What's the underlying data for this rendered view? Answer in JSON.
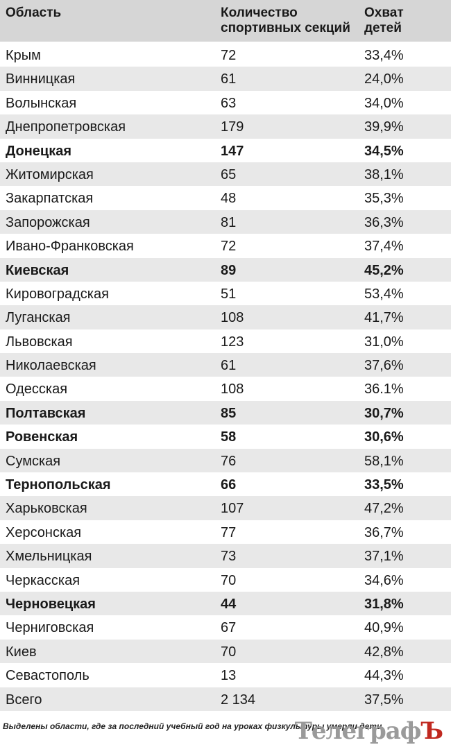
{
  "header": {
    "col1": "Область",
    "col2_line1": "Количество",
    "col2_line2": "спортивных секций",
    "col3_line1": "Охват",
    "col3_line2": "детей"
  },
  "rows": [
    {
      "region": "Крым",
      "sections": "72",
      "coverage": "33,4%",
      "highlighted": false
    },
    {
      "region": "Винницкая",
      "sections": "61",
      "coverage": "24,0%",
      "highlighted": false
    },
    {
      "region": "Волынская",
      "sections": "63",
      "coverage": "34,0%",
      "highlighted": false
    },
    {
      "region": "Днепропетровская",
      "sections": "179",
      "coverage": "39,9%",
      "highlighted": false
    },
    {
      "region": "Донецкая",
      "sections": "147",
      "coverage": "34,5%",
      "highlighted": true
    },
    {
      "region": "Житомирская",
      "sections": "65",
      "coverage": "38,1%",
      "highlighted": false
    },
    {
      "region": "Закарпатская",
      "sections": "48",
      "coverage": "35,3%",
      "highlighted": false
    },
    {
      "region": "Запорожская",
      "sections": "81",
      "coverage": "36,3%",
      "highlighted": false
    },
    {
      "region": "Ивано-Франковская",
      "sections": "72",
      "coverage": "37,4%",
      "highlighted": false
    },
    {
      "region": "Киевская",
      "sections": "89",
      "coverage": "45,2%",
      "highlighted": true
    },
    {
      "region": "Кировоградская",
      "sections": "51",
      "coverage": "53,4%",
      "highlighted": false
    },
    {
      "region": "Луганская",
      "sections": "108",
      "coverage": "41,7%",
      "highlighted": false
    },
    {
      "region": "Львовская",
      "sections": "123",
      "coverage": "31,0%",
      "highlighted": false
    },
    {
      "region": "Николаевская",
      "sections": "61",
      "coverage": "37,6%",
      "highlighted": false
    },
    {
      "region": "Одесская",
      "sections": "108",
      "coverage": "36.1%",
      "highlighted": false
    },
    {
      "region": "Полтавская",
      "sections": "85",
      "coverage": "30,7%",
      "highlighted": true
    },
    {
      "region": "Ровенская",
      "sections": "58",
      "coverage": "30,6%",
      "highlighted": true
    },
    {
      "region": "Сумская",
      "sections": "76",
      "coverage": "58,1%",
      "highlighted": false
    },
    {
      "region": "Тернопольская",
      "sections": "66",
      "coverage": "33,5%",
      "highlighted": true
    },
    {
      "region": "Харьковская",
      "sections": "107",
      "coverage": "47,2%",
      "highlighted": false
    },
    {
      "region": "Херсонская",
      "sections": "77",
      "coverage": "36,7%",
      "highlighted": false
    },
    {
      "region": "Хмельницкая",
      "sections": "73",
      "coverage": "37,1%",
      "highlighted": false
    },
    {
      "region": "Черкасская",
      "sections": "70",
      "coverage": "34,6%",
      "highlighted": false
    },
    {
      "region": "Черновецкая",
      "sections": "44",
      "coverage": "31,8%",
      "highlighted": true
    },
    {
      "region": "Черниговская",
      "sections": "67",
      "coverage": "40,9%",
      "highlighted": false
    },
    {
      "region": "Киев",
      "sections": "70",
      "coverage": "42,8%",
      "highlighted": false
    },
    {
      "region": "Севастополь",
      "sections": "13",
      "coverage": "44,3%",
      "highlighted": false
    },
    {
      "region": "Всего",
      "sections": "2 134",
      "coverage": "37,5%",
      "highlighted": false
    }
  ],
  "footer_note": "Выделены области, где за последний учебный год на уроках физкультуры умерли дети",
  "logo": {
    "text": "Телеграф",
    "accent": "Ъ"
  },
  "colors": {
    "header_bg": "#d6d6d6",
    "stripe_bg": "#e8e8e8",
    "logo_accent": "#c0281f"
  }
}
